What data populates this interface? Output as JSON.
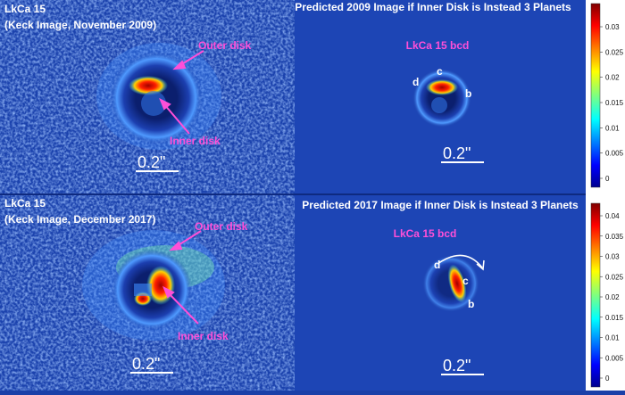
{
  "panels": [
    {
      "title": "LkCa 15",
      "subtitle": "(Keck Image, November 2009)",
      "labels": [
        "Outer disk",
        "Inner disk"
      ],
      "scale": "0.2\""
    },
    {
      "title": "Predicted 2009 Image if Inner Disk is Instead 3 Planets",
      "labels": [
        "LkCa 15 bcd",
        "c",
        "d",
        "b"
      ],
      "scale": "0.2\""
    },
    {
      "title": "LkCa 15",
      "subtitle": "(Keck Image, December 2017)",
      "labels": [
        "Outer disk",
        "Inner disk"
      ],
      "scale": "0.2\""
    },
    {
      "title": "Predicted 2017 Image if Inner Disk is Instead 3 Planets",
      "labels": [
        "LkCa 15 bcd",
        "c",
        "d",
        "b"
      ],
      "scale": "0.2\""
    }
  ],
  "colorbars": [
    {
      "ticks": [
        "0.03",
        "0.025",
        "0.02",
        "0.015",
        "0.01",
        "0.005",
        "0"
      ]
    },
    {
      "ticks": [
        "0.04",
        "0.035",
        "0.03",
        "0.025",
        "0.02",
        "0.015",
        "0.01",
        "0.005",
        "0"
      ]
    }
  ]
}
